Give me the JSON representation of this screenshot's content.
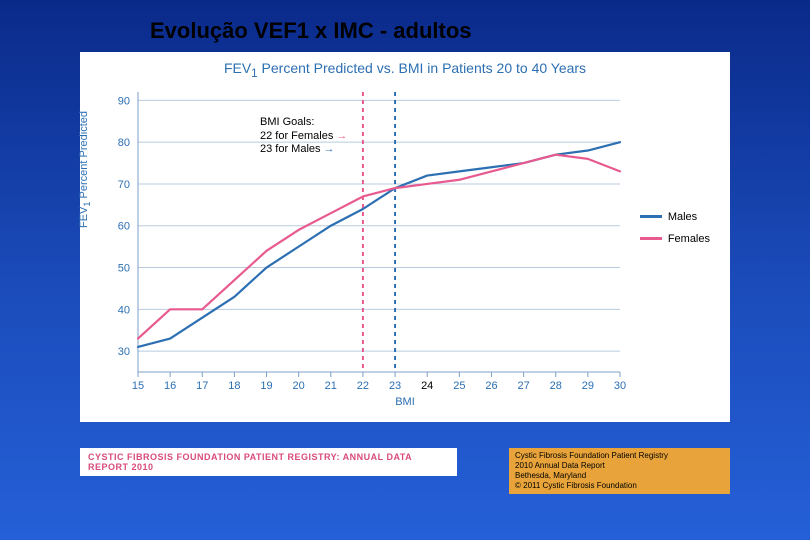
{
  "slide": {
    "title": "Evolução VEF1 x IMC  - adultos"
  },
  "chart": {
    "type": "line",
    "title_html": "FEV<sub>1</sub> Percent Predicted vs. BMI in Patients 20 to 40 Years",
    "title_color": "#2c6fb2",
    "ylabel_html": "FEV<sub>1</sub> Percent Predicted",
    "xlabel": "BMI",
    "label_color": "#2c6fb2",
    "label_fontsize": 11,
    "x_ticks": [
      15,
      16,
      17,
      18,
      19,
      20,
      21,
      22,
      23,
      24,
      25,
      26,
      27,
      28,
      29,
      30
    ],
    "y_ticks": [
      30,
      40,
      50,
      60,
      70,
      80,
      90
    ],
    "xlim": [
      15,
      30
    ],
    "ylim": [
      25,
      92
    ],
    "grid_color": "#b8cbe0",
    "axis_color": "#7ca0c8",
    "tick_label_color": "#2c6fb2",
    "background_color": "#ffffff",
    "line_width": 2.2,
    "series": [
      {
        "name": "Males",
        "color": "#2c6fb2",
        "x": [
          15,
          16,
          17,
          18,
          19,
          20,
          21,
          22,
          23,
          24,
          25,
          26,
          27,
          28,
          29,
          30
        ],
        "y": [
          31,
          33,
          38,
          43,
          50,
          55,
          60,
          64,
          69,
          72,
          73,
          74,
          75,
          77,
          78,
          80
        ]
      },
      {
        "name": "Females",
        "color": "#e85a8f",
        "x": [
          15,
          16,
          17,
          18,
          19,
          20,
          21,
          22,
          23,
          24,
          25,
          26,
          27,
          28,
          29,
          30
        ],
        "y": [
          33,
          40,
          40,
          47,
          54,
          59,
          63,
          67,
          69,
          70,
          71,
          73,
          75,
          77,
          76,
          73
        ]
      }
    ],
    "goal_lines": [
      {
        "x": 22,
        "color": "#e85a8f",
        "dash": "4,4"
      },
      {
        "x": 23,
        "color": "#2c6fb2",
        "dash": "4,4"
      }
    ],
    "goals_text": {
      "title": "BMI Goals:",
      "female": "22 for Females",
      "male": "23 for Males"
    }
  },
  "footer": {
    "registry": "CYSTIC FIBROSIS FOUNDATION PATIENT REGISTRY:  ANNUAL DATA REPORT 2010",
    "citation": {
      "l1": "Cystic Fibrosis Foundation Patient Registry",
      "l2": "2010 Annual Data Report",
      "l3": "Bethesda, Maryland",
      "l4": "© 2011 Cystic Fibrosis Foundation"
    },
    "citation_bg": "#e8a43a"
  }
}
